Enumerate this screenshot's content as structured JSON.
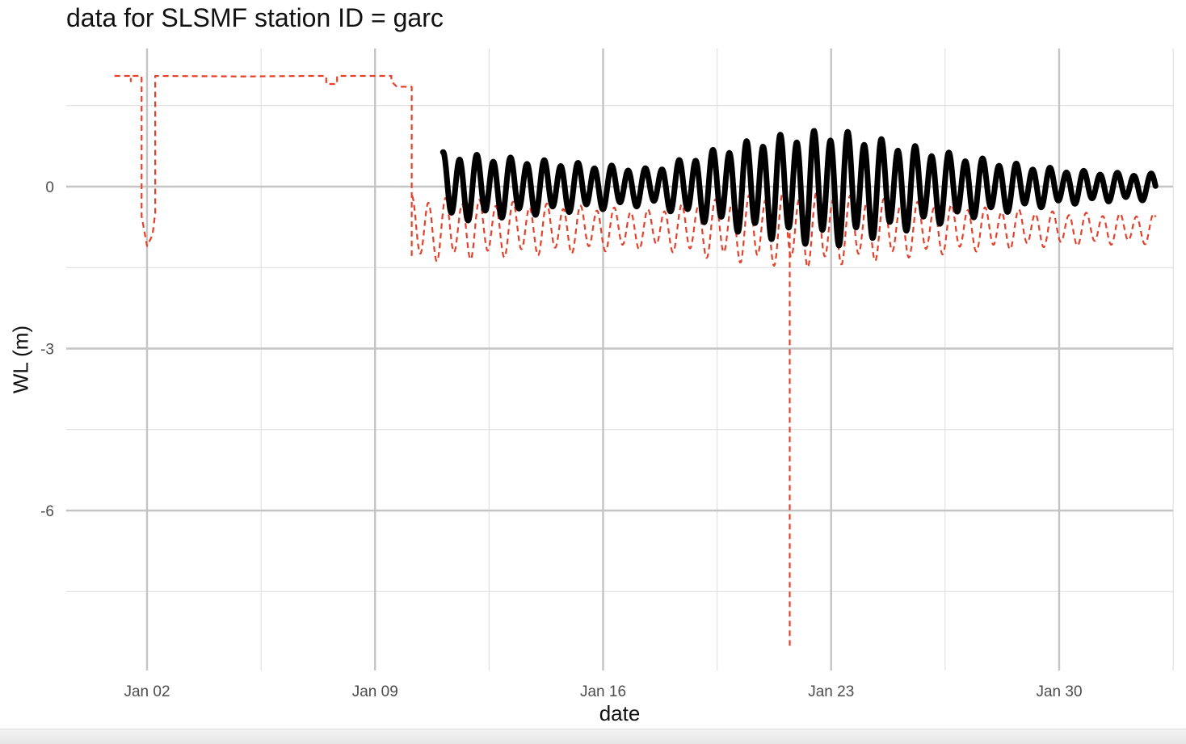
{
  "chart_data": {
    "type": "line",
    "title": "data for SLSMF station ID = garc",
    "xlabel": "date",
    "ylabel": "WL (m)",
    "x_axis": {
      "type": "date",
      "range": [
        "2023-12-30T16:00",
        "2024-02-02T12:00"
      ],
      "major_ticks": [
        {
          "date": "2024-01-02",
          "label": "Jan 02"
        },
        {
          "date": "2024-01-09",
          "label": "Jan 09"
        },
        {
          "date": "2024-01-16",
          "label": "Jan 16"
        },
        {
          "date": "2024-01-23",
          "label": "Jan 23"
        },
        {
          "date": "2024-01-30",
          "label": "Jan 30"
        }
      ],
      "minor_ticks": [
        "2024-01-05T12:00",
        "2024-01-12T12:00",
        "2024-01-19T12:00",
        "2024-01-26T12:00",
        "2024-02-02T12:00"
      ]
    },
    "y_axis": {
      "range": [
        -8.95,
        2.65
      ],
      "major_ticks": [
        {
          "value": 0,
          "label": "0"
        },
        {
          "value": -3,
          "label": "-3"
        },
        {
          "value": -6,
          "label": "-6"
        }
      ],
      "minor_ticks": [
        1.5,
        -1.5,
        -4.5,
        -7.5
      ]
    },
    "grid": true,
    "legend": "none",
    "series": [
      {
        "style": "dashed",
        "color": "#e5402a",
        "segments": [
          {
            "kind": "points",
            "points": [
              [
                "2024-01-01T00:00",
                2.05
              ],
              [
                "2024-01-01T12:00",
                2.05
              ],
              [
                "2024-01-01T12:00",
                1.95
              ],
              [
                "2024-01-01T12:00",
                2.05
              ],
              [
                "2024-01-01T20:00",
                2.05
              ],
              [
                "2024-01-01T20:00",
                -0.55
              ],
              [
                "2024-01-02T00:00",
                -1.1
              ],
              [
                "2024-01-02T04:00",
                -0.9
              ],
              [
                "2024-01-02T06:00",
                -0.5
              ],
              [
                "2024-01-02T06:00",
                2.05
              ],
              [
                "2024-01-05T00:00",
                2.04
              ],
              [
                "2024-01-07T00:00",
                2.05
              ],
              [
                "2024-01-07T12:00",
                2.05
              ],
              [
                "2024-01-07T12:00",
                1.9
              ],
              [
                "2024-01-07T20:00",
                1.9
              ],
              [
                "2024-01-07T20:00",
                2.05
              ],
              [
                "2024-01-09T12:00",
                2.05
              ],
              [
                "2024-01-09T12:00",
                1.95
              ],
              [
                "2024-01-09T16:00",
                1.85
              ],
              [
                "2024-01-10T03:00",
                1.85
              ],
              [
                "2024-01-10T03:00",
                -1.35
              ]
            ]
          },
          {
            "kind": "tidal",
            "start": "2024-01-10T03:00",
            "end": "2024-02-01T23:00",
            "mean": -0.78,
            "amplitude_start": 0.55,
            "amplitude_peak": 0.62,
            "amplitude_end": 0.25,
            "peak_time": "2024-01-22T12:00",
            "low_amplitude_time": "2024-01-17T12:00",
            "low_amplitude": 0.32,
            "period_hours": 12.42
          },
          {
            "kind": "spike",
            "date": "2024-01-21T17:30",
            "min_value": -8.55
          }
        ]
      },
      {
        "style": "solid-thick",
        "color": "#000000",
        "segments": [
          {
            "kind": "tidal",
            "start": "2024-01-11T02:00",
            "end": "2024-02-01T23:00",
            "mean": 0.0,
            "amplitude_start": 0.58,
            "amplitude_peak": 0.95,
            "amplitude_end": 0.22,
            "peak_time": "2024-01-23T06:00",
            "low_amplitude_time": "2024-01-17T12:00",
            "low_amplitude": 0.3,
            "period_hours": 12.42
          }
        ]
      }
    ]
  }
}
